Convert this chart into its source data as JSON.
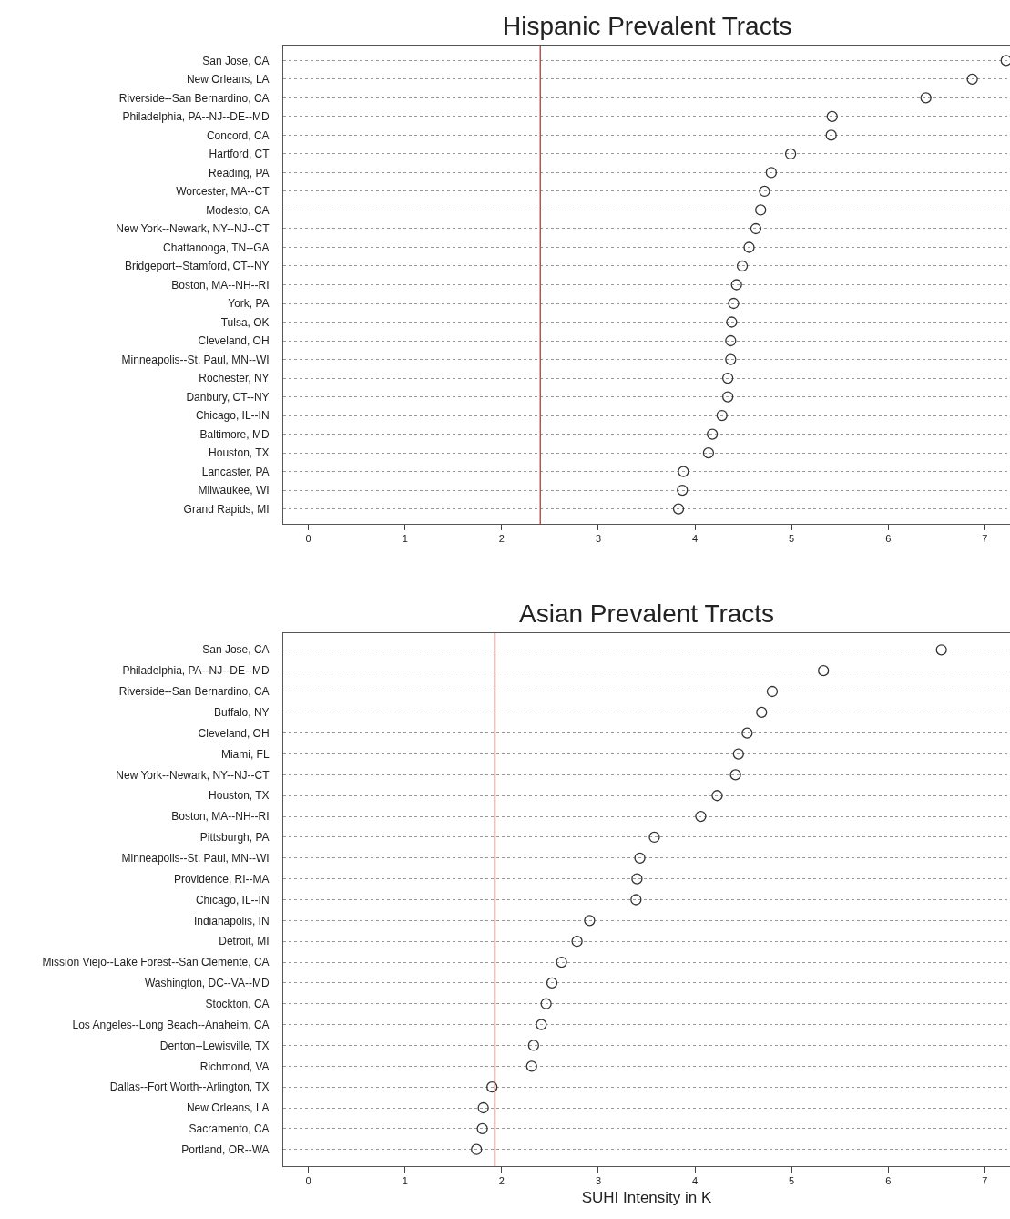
{
  "chart_data": [
    {
      "type": "scatter",
      "title": "Hispanic Prevalent Tracts",
      "orientation": "horizontal",
      "marker": "circle",
      "color": "#333333",
      "grid": "y",
      "categories": [
        "San Jose, CA",
        "New Orleans, LA",
        "Riverside--San Bernardino, CA",
        "Philadelphia, PA--NJ--DE--MD",
        "Concord, CA",
        "Hartford, CT",
        "Reading, PA",
        "Worcester, MA--CT",
        "Modesto, CA",
        "New York--Newark, NY--NJ--CT",
        "Chattanooga, TN--GA",
        "Bridgeport--Stamford, CT--NY",
        "Boston, MA--NH--RI",
        "York, PA",
        "Tulsa, OK",
        "Cleveland, OH",
        "Minneapolis--St. Paul, MN--WI",
        "Rochester, NY",
        "Danbury, CT--NY",
        "Chicago, IL--IN",
        "Baltimore, MD",
        "Houston, TX",
        "Lancaster, PA",
        "Milwaukee, WI",
        "Grand Rapids, MI"
      ],
      "values": [
        7.22,
        6.87,
        6.39,
        5.42,
        5.41,
        4.99,
        4.79,
        4.72,
        4.68,
        4.63,
        4.56,
        4.49,
        4.43,
        4.4,
        4.38,
        4.37,
        4.37,
        4.34,
        4.34,
        4.28,
        4.18,
        4.14,
        3.88,
        3.87,
        3.83
      ],
      "xlim": [
        -0.26,
        7.26
      ],
      "xticks": [
        0,
        1,
        2,
        3,
        4,
        5,
        6,
        7
      ],
      "ref_lines": [
        {
          "axis": "x",
          "value": 2.4,
          "color": "#c0504d"
        }
      ]
    },
    {
      "type": "scatter",
      "title": "Asian Prevalent Tracts",
      "xlabel": "SUHI Intensity in K",
      "orientation": "horizontal",
      "marker": "circle",
      "color": "#333333",
      "grid": "y",
      "categories": [
        "San Jose, CA",
        "Philadelphia, PA--NJ--DE--MD",
        "Riverside--San Bernardino, CA",
        "Buffalo, NY",
        "Cleveland, OH",
        "Miami, FL",
        "New York--Newark, NY--NJ--CT",
        "Houston, TX",
        "Boston, MA--NH--RI",
        "Pittsburgh, PA",
        "Minneapolis--St. Paul, MN--WI",
        "Providence, RI--MA",
        "Chicago, IL--IN",
        "Indianapolis, IN",
        "Detroit, MI",
        "Mission Viejo--Lake Forest--San Clemente, CA",
        "Washington, DC--VA--MD",
        "Stockton, CA",
        "Los Angeles--Long Beach--Anaheim, CA",
        "Denton--Lewisville, TX",
        "Richmond, VA",
        "Dallas--Fort Worth--Arlington, TX",
        "New Orleans, LA",
        "Sacramento, CA",
        "Portland, OR--WA"
      ],
      "values": [
        6.55,
        5.33,
        4.8,
        4.69,
        4.54,
        4.45,
        4.42,
        4.23,
        4.06,
        3.58,
        3.43,
        3.4,
        3.39,
        2.91,
        2.78,
        2.62,
        2.52,
        2.46,
        2.41,
        2.33,
        2.31,
        1.9,
        1.81,
        1.8,
        1.74
      ],
      "xlim": [
        -0.26,
        7.26
      ],
      "xticks": [
        0,
        1,
        2,
        3,
        4,
        5,
        6,
        7
      ],
      "ref_lines": [
        {
          "axis": "x",
          "value": 1.93,
          "color": "#c0504d"
        }
      ]
    }
  ]
}
